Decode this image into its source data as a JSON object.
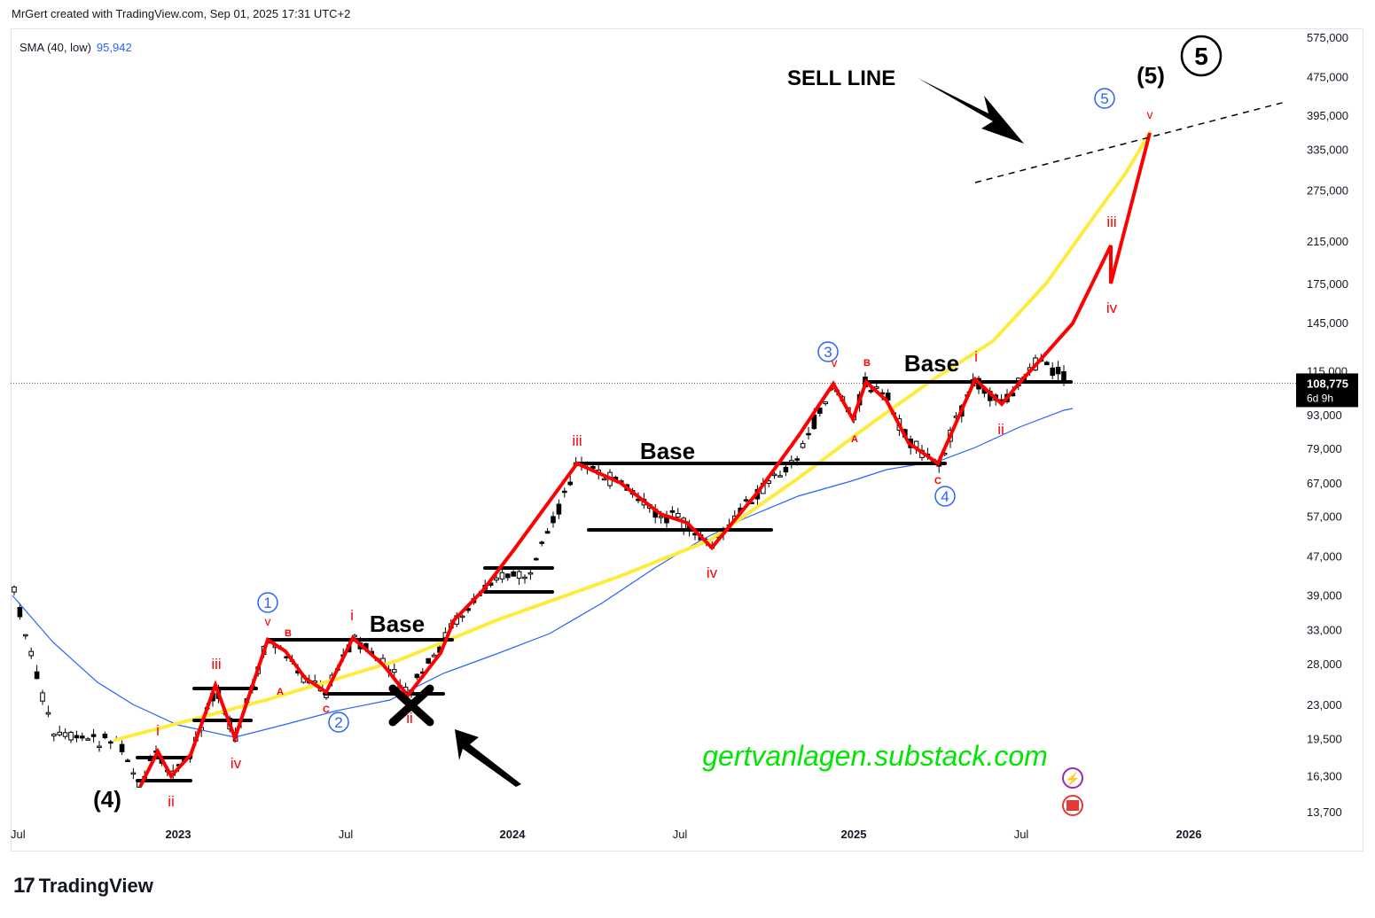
{
  "header": {
    "attribution": "MrGert created with TradingView.com, Sep 01, 2025 17:31 UTC+2"
  },
  "legend": {
    "label": "SMA (40, low)",
    "value": "95,942"
  },
  "price_tag": {
    "price": "108,775",
    "countdown": "6d 9h"
  },
  "footer": {
    "logo_text": "TradingView",
    "logo_mark": "17"
  },
  "colors": {
    "sma": "#2962ff",
    "impulse": "#ff0000",
    "curve": "#ffeb3b",
    "watermark": "#00e600",
    "up_candle": "#ffffff",
    "down_candle": "#000000"
  },
  "chart_data": {
    "type": "candlestick",
    "title": "",
    "xlabel": "",
    "ylabel": "",
    "scale": "log",
    "ylim": [
      12500,
      620000
    ],
    "y_ticks": [
      "575,000",
      "475,000",
      "395,000",
      "335,000",
      "275,000",
      "215,000",
      "175,000",
      "145,000",
      "115,000",
      "93,000",
      "79,000",
      "67,000",
      "57,000",
      "47,000",
      "39,000",
      "33,000",
      "28,000",
      "23,000",
      "19,500",
      "16,300",
      "13,700"
    ],
    "x_ticks": [
      "Jul",
      "2023",
      "Jul",
      "2024",
      "Jul",
      "2025",
      "Jul",
      "2026"
    ],
    "x_tick_bold": [
      false,
      true,
      false,
      true,
      false,
      true,
      false,
      true
    ],
    "series": [
      {
        "name": "SMA (40, low)",
        "note": "moving average"
      }
    ],
    "annotations": {
      "sell_line": "SELL LINE",
      "watermark": "gertvanlagen.substack.com",
      "bases": [
        "Base",
        "Base",
        "Base"
      ],
      "circled_blue": [
        "1",
        "2",
        "3",
        "4",
        "5"
      ],
      "circled_black": "5",
      "big_labels": [
        "(4)",
        "(5)"
      ],
      "red_labels": [
        "i",
        "ii",
        "iii",
        "iv",
        "v",
        "B",
        "A",
        "C",
        "i",
        "ii",
        "iii",
        "iv",
        "v",
        "A",
        "B",
        "C",
        "i",
        "ii",
        "iii",
        "iv",
        "v"
      ]
    }
  }
}
